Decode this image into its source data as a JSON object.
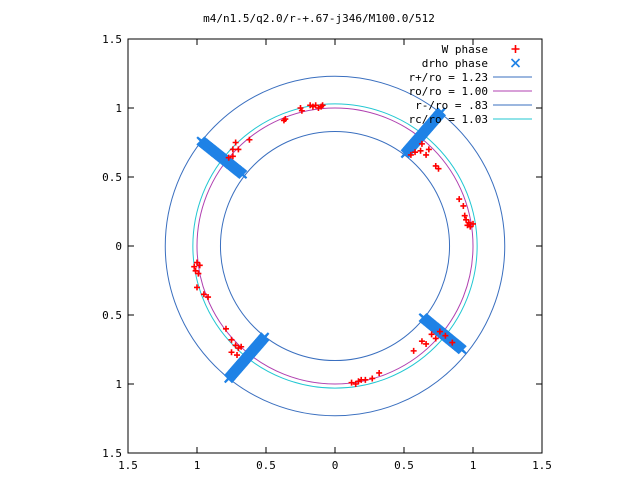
{
  "chart_data": {
    "type": "scatter",
    "title": "m4/n1.5/q2.0/r-+.67-j346/M100.0/512",
    "xlim": [
      -1.5,
      1.5
    ],
    "ylim": [
      -1.5,
      1.5
    ],
    "x_ticks": [
      -1.5,
      -1,
      -0.5,
      0,
      0.5,
      1,
      1.5
    ],
    "y_ticks": [
      -1.5,
      -1,
      -0.5,
      0,
      0.5,
      1,
      1.5
    ],
    "x_tick_labels": [
      "1.5",
      "1",
      "0.5",
      "0",
      "0.5",
      "1",
      "1.5"
    ],
    "y_tick_labels": [
      "1.5",
      "1",
      "0.5",
      "0",
      "0.5",
      "1",
      "1.5"
    ],
    "legend_position": "top-right",
    "grid": false,
    "circles": [
      {
        "name": "r+/ro = 1.23",
        "radius": 1.23,
        "color": "#3a6fbf"
      },
      {
        "name": "ro/ro = 1.00",
        "radius": 1.0,
        "color": "#b040b0"
      },
      {
        "name": "r-/ro = .83",
        "radius": 0.83,
        "color": "#3a6fbf"
      },
      {
        "name": "rc/ro = 1.03",
        "radius": 1.03,
        "color": "#22c7d2"
      }
    ],
    "series": [
      {
        "name": "W phase",
        "marker": "+",
        "color": "#ff0000",
        "points": [
          [
            -0.25,
            1.0
          ],
          [
            -0.24,
            0.98
          ],
          [
            -0.18,
            1.02
          ],
          [
            -0.16,
            1.01
          ],
          [
            -0.14,
            1.02
          ],
          [
            -0.12,
            1.0
          ],
          [
            -0.1,
            1.01
          ],
          [
            -0.09,
            1.02
          ],
          [
            -0.37,
            0.91
          ],
          [
            -0.36,
            0.92
          ],
          [
            -0.72,
            0.75
          ],
          [
            -0.7,
            0.7
          ],
          [
            -0.74,
            0.65
          ],
          [
            -0.77,
            0.64
          ],
          [
            -0.62,
            0.77
          ],
          [
            -0.74,
            0.7
          ],
          [
            0.55,
            0.66
          ],
          [
            0.58,
            0.68
          ],
          [
            0.62,
            0.69
          ],
          [
            0.63,
            0.74
          ],
          [
            0.66,
            0.66
          ],
          [
            0.68,
            0.7
          ],
          [
            0.73,
            0.58
          ],
          [
            0.75,
            0.56
          ],
          [
            0.9,
            0.34
          ],
          [
            0.93,
            0.29
          ],
          [
            0.94,
            0.22
          ],
          [
            0.95,
            0.19
          ],
          [
            0.96,
            0.15
          ],
          [
            0.97,
            0.17
          ],
          [
            0.98,
            0.14
          ],
          [
            1.0,
            0.16
          ],
          [
            -1.02,
            -0.15
          ],
          [
            -1.0,
            -0.12
          ],
          [
            -0.98,
            -0.14
          ],
          [
            -1.01,
            -0.18
          ],
          [
            -0.99,
            -0.2
          ],
          [
            -1.0,
            -0.3
          ],
          [
            -0.95,
            -0.35
          ],
          [
            -0.92,
            -0.37
          ],
          [
            -0.79,
            -0.6
          ],
          [
            -0.75,
            -0.68
          ],
          [
            -0.72,
            -0.72
          ],
          [
            -0.7,
            -0.74
          ],
          [
            -0.68,
            -0.73
          ],
          [
            -0.75,
            -0.77
          ],
          [
            -0.71,
            -0.79
          ],
          [
            0.12,
            -0.99
          ],
          [
            0.15,
            -1.0
          ],
          [
            0.17,
            -0.98
          ],
          [
            0.19,
            -0.97
          ],
          [
            0.22,
            -0.97
          ],
          [
            0.27,
            -0.96
          ],
          [
            0.32,
            -0.92
          ],
          [
            0.57,
            -0.76
          ],
          [
            0.63,
            -0.69
          ],
          [
            0.66,
            -0.71
          ],
          [
            0.7,
            -0.64
          ],
          [
            0.73,
            -0.67
          ],
          [
            0.76,
            -0.62
          ],
          [
            0.8,
            -0.65
          ],
          [
            0.85,
            -0.7
          ]
        ]
      },
      {
        "name": "drho phase",
        "marker": "x",
        "color": "#1f82e6",
        "segments": [
          {
            "from": [
              -0.97,
              0.76
            ],
            "to": [
              -0.67,
              0.52
            ]
          },
          {
            "from": [
              0.51,
              0.67
            ],
            "to": [
              0.77,
              0.97
            ]
          },
          {
            "from": [
              0.64,
              -0.52
            ],
            "to": [
              0.92,
              -0.75
            ]
          },
          {
            "from": [
              -0.77,
              -0.96
            ],
            "to": [
              -0.51,
              -0.66
            ]
          }
        ]
      }
    ]
  }
}
